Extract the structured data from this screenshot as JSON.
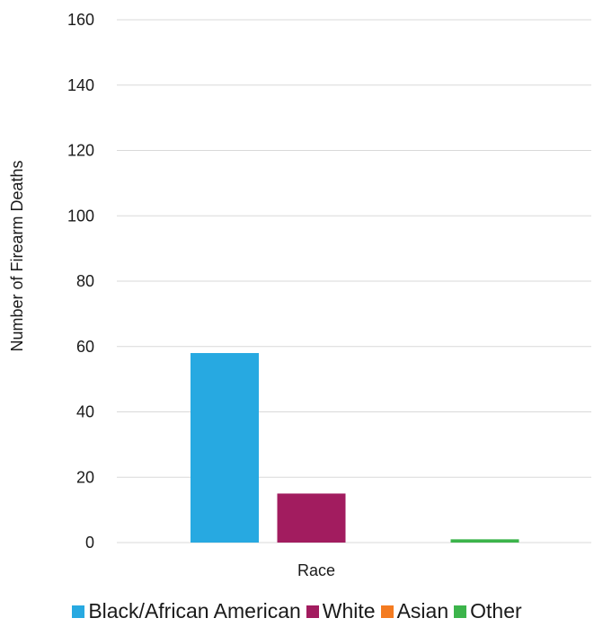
{
  "chart_data": {
    "type": "bar",
    "title": "",
    "categories": [
      "Race"
    ],
    "series": [
      {
        "name": "Black/African American",
        "values": [
          58
        ],
        "color": "#27a9e1"
      },
      {
        "name": "White",
        "values": [
          15
        ],
        "color": "#a21c5f"
      },
      {
        "name": "Asian",
        "values": [
          0
        ],
        "color": "#f47b20"
      },
      {
        "name": "Other",
        "values": [
          1
        ],
        "color": "#3cb44b"
      }
    ],
    "xlabel": "Race",
    "ylabel": "Number of Firearm Deaths",
    "ylim": [
      0,
      160
    ],
    "yticks": [
      0,
      20,
      40,
      60,
      80,
      100,
      120,
      140,
      160
    ],
    "grid": true,
    "legend_position": "bottom"
  }
}
